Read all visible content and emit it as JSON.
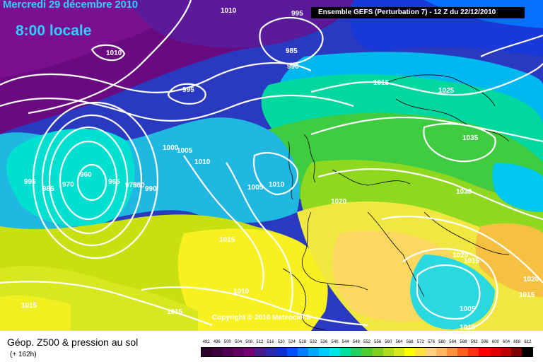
{
  "header": {
    "valid_date": "Mercredi 29 décembre 2010",
    "valid_time": "8:00 locale",
    "model_run": "Ensemble GEFS (Perturbation 7)  -  12 Z du 22/12/2010"
  },
  "map_labels": {
    "isobars": [
      "1010",
      "995",
      "1010",
      "985",
      "990",
      "995",
      "1015",
      "1025",
      "1035",
      "1000",
      "1005",
      "1010",
      "1005",
      "1010",
      "1020",
      "1030",
      "995",
      "985",
      "970",
      "960",
      "965",
      "975",
      "980",
      "990",
      "1015",
      "1010",
      "1015",
      "1020",
      "1015",
      "1005",
      "1010",
      "1015",
      "1020",
      "1015"
    ]
  },
  "copyright": "Copyright © 2010 Meteociel.fr",
  "footer": {
    "title": "Géop. Z500 & pression au sol",
    "lead": "(+ 162h)"
  },
  "legend": {
    "ticks": [
      "492",
      "496",
      "500",
      "504",
      "508",
      "512",
      "516",
      "520",
      "524",
      "528",
      "532",
      "536",
      "540",
      "544",
      "548",
      "552",
      "556",
      "560",
      "564",
      "568",
      "572",
      "576",
      "580",
      "584",
      "588",
      "592",
      "596",
      "600",
      "604",
      "608",
      "612"
    ],
    "colors": [
      "#2b002b",
      "#3d003d",
      "#500050",
      "#620062",
      "#740074",
      "#4a1a8a",
      "#2a2ab0",
      "#1030d0",
      "#0050ff",
      "#0080ff",
      "#00a8ff",
      "#00ccff",
      "#00e6e6",
      "#00e0a0",
      "#20d060",
      "#50cc30",
      "#80d020",
      "#b0dc20",
      "#d8e820",
      "#ffff00",
      "#ffe040",
      "#ffd080",
      "#ffb860",
      "#ff9040",
      "#ff6020",
      "#ff3010",
      "#ff0000",
      "#e00000",
      "#c00000",
      "#800000",
      "#000000"
    ],
    "isobar_color": "#ffffff",
    "border_color": "#000000"
  }
}
